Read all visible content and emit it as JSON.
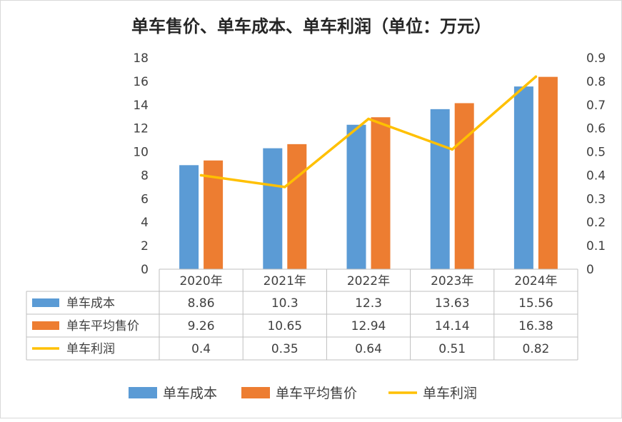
{
  "chart_data": {
    "type": "bar",
    "title": "单车售价、单车成本、单车利润（单位：万元）",
    "categories": [
      "2020年",
      "2021年",
      "2022年",
      "2023年",
      "2024年"
    ],
    "series": [
      {
        "name": "单车成本",
        "type": "bar",
        "axis": "left",
        "color": "#5b9bd5",
        "values": [
          8.86,
          10.3,
          12.3,
          13.63,
          15.56
        ],
        "labels": [
          "8.86",
          "10.3",
          "12.3",
          "13.63",
          "15.56"
        ]
      },
      {
        "name": "单车平均售价",
        "type": "bar",
        "axis": "left",
        "color": "#ed7d31",
        "values": [
          9.26,
          10.65,
          12.94,
          14.14,
          16.38
        ],
        "labels": [
          "9.26",
          "10.65",
          "12.94",
          "14.14",
          "16.38"
        ]
      },
      {
        "name": "单车利润",
        "type": "line",
        "axis": "right",
        "color": "#ffc000",
        "values": [
          0.4,
          0.35,
          0.64,
          0.51,
          0.82
        ],
        "labels": [
          "0.4",
          "0.35",
          "0.64",
          "0.51",
          "0.82"
        ]
      }
    ],
    "ylim": [
      0,
      18
    ],
    "y_ticks": [
      "0",
      "2",
      "4",
      "6",
      "8",
      "10",
      "12",
      "14",
      "16",
      "18"
    ],
    "y2lim": [
      0,
      0.9
    ],
    "y2_ticks": [
      "0",
      "0.1",
      "0.2",
      "0.3",
      "0.4",
      "0.5",
      "0.6",
      "0.7",
      "0.8",
      "0.9"
    ],
    "grid": false,
    "data_table": true,
    "legend": "bottom"
  }
}
